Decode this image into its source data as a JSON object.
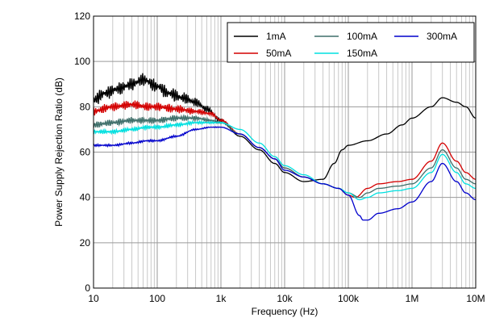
{
  "chart_data": {
    "type": "line",
    "title": "",
    "xlabel": "Frequency (Hz)",
    "ylabel": "Power Supply Rejection Ratio (dB)",
    "xscale": "log",
    "xlim": [
      10,
      10000000
    ],
    "ylim": [
      0,
      120
    ],
    "grid": "on",
    "legend": "top-right",
    "xticks": [
      {
        "value": 10,
        "label": "10"
      },
      {
        "value": 100,
        "label": "100"
      },
      {
        "value": 1000,
        "label": "1k"
      },
      {
        "value": 10000,
        "label": "10k"
      },
      {
        "value": 100000,
        "label": "100k"
      },
      {
        "value": 1000000,
        "label": "1M"
      },
      {
        "value": 10000000,
        "label": "10M"
      }
    ],
    "yticks": [
      {
        "value": 0,
        "label": "0"
      },
      {
        "value": 20,
        "label": "20"
      },
      {
        "value": 40,
        "label": "40"
      },
      {
        "value": 60,
        "label": "60"
      },
      {
        "value": 80,
        "label": "80"
      },
      {
        "value": 100,
        "label": "100"
      },
      {
        "value": 120,
        "label": "120"
      }
    ],
    "series": [
      {
        "name": "1mA",
        "color": "#000000",
        "noise": 3.0,
        "legend_row": 0,
        "legend_col": 0,
        "points": [
          [
            10,
            83
          ],
          [
            15,
            86
          ],
          [
            25,
            88
          ],
          [
            40,
            90
          ],
          [
            60,
            92
          ],
          [
            100,
            89
          ],
          [
            150,
            86
          ],
          [
            250,
            84
          ],
          [
            400,
            82
          ],
          [
            600,
            79
          ],
          [
            1000,
            74
          ],
          [
            2000,
            67
          ],
          [
            4000,
            61
          ],
          [
            7000,
            55
          ],
          [
            10000,
            51
          ],
          [
            20000,
            47
          ],
          [
            40000,
            48
          ],
          [
            60000,
            55
          ],
          [
            80000,
            61
          ],
          [
            100000,
            63
          ],
          [
            200000,
            65
          ],
          [
            400000,
            68
          ],
          [
            700000,
            72
          ],
          [
            1000000,
            75
          ],
          [
            2000000,
            80
          ],
          [
            3000000,
            84
          ],
          [
            5000000,
            82
          ],
          [
            7000000,
            80
          ],
          [
            10000000,
            75
          ]
        ]
      },
      {
        "name": "50mA",
        "color": "#d40000",
        "noise": 2.0,
        "legend_row": 1,
        "legend_col": 0,
        "points": [
          [
            10,
            78
          ],
          [
            20,
            80
          ],
          [
            40,
            81
          ],
          [
            70,
            80
          ],
          [
            100,
            80
          ],
          [
            200,
            79
          ],
          [
            400,
            78
          ],
          [
            700,
            77
          ],
          [
            1000,
            74
          ],
          [
            2000,
            68
          ],
          [
            4000,
            62
          ],
          [
            7000,
            57
          ],
          [
            10000,
            53
          ],
          [
            20000,
            49
          ],
          [
            40000,
            46
          ],
          [
            70000,
            44
          ],
          [
            100000,
            41
          ],
          [
            130000,
            40
          ],
          [
            200000,
            44
          ],
          [
            300000,
            46
          ],
          [
            600000,
            47
          ],
          [
            1000000,
            48
          ],
          [
            2000000,
            56
          ],
          [
            3000000,
            64
          ],
          [
            5000000,
            56
          ],
          [
            7000000,
            51
          ],
          [
            10000000,
            48
          ]
        ]
      },
      {
        "name": "100mA",
        "color": "#3f6f6a",
        "noise": 1.5,
        "legend_row": 0,
        "legend_col": 1,
        "points": [
          [
            10,
            72
          ],
          [
            20,
            73
          ],
          [
            40,
            74
          ],
          [
            70,
            74
          ],
          [
            100,
            74
          ],
          [
            200,
            75
          ],
          [
            400,
            75
          ],
          [
            700,
            74
          ],
          [
            1000,
            73
          ],
          [
            2000,
            68
          ],
          [
            4000,
            62
          ],
          [
            7000,
            57
          ],
          [
            10000,
            53
          ],
          [
            20000,
            49
          ],
          [
            40000,
            46
          ],
          [
            70000,
            44
          ],
          [
            100000,
            42
          ],
          [
            150000,
            40
          ],
          [
            200000,
            42
          ],
          [
            300000,
            44
          ],
          [
            600000,
            45
          ],
          [
            1000000,
            46
          ],
          [
            2000000,
            53
          ],
          [
            3000000,
            61
          ],
          [
            5000000,
            53
          ],
          [
            7000000,
            48
          ],
          [
            10000000,
            46
          ]
        ]
      },
      {
        "name": "150mA",
        "color": "#00e0e0",
        "noise": 1.0,
        "legend_row": 1,
        "legend_col": 1,
        "points": [
          [
            10,
            69
          ],
          [
            20,
            69
          ],
          [
            40,
            70
          ],
          [
            70,
            71
          ],
          [
            100,
            71
          ],
          [
            200,
            72
          ],
          [
            400,
            73
          ],
          [
            700,
            73
          ],
          [
            1000,
            73
          ],
          [
            2000,
            70
          ],
          [
            4000,
            64
          ],
          [
            7000,
            58
          ],
          [
            10000,
            54
          ],
          [
            20000,
            50
          ],
          [
            40000,
            46
          ],
          [
            70000,
            44
          ],
          [
            100000,
            42
          ],
          [
            150000,
            39
          ],
          [
            200000,
            40
          ],
          [
            300000,
            42
          ],
          [
            600000,
            43
          ],
          [
            1000000,
            44
          ],
          [
            2000000,
            51
          ],
          [
            3000000,
            59
          ],
          [
            5000000,
            51
          ],
          [
            7000000,
            46
          ],
          [
            10000000,
            44
          ]
        ]
      },
      {
        "name": "300mA",
        "color": "#0000cc",
        "noise": 0.5,
        "legend_row": 0,
        "legend_col": 2,
        "points": [
          [
            10,
            63
          ],
          [
            20,
            63
          ],
          [
            40,
            64
          ],
          [
            70,
            65
          ],
          [
            100,
            65
          ],
          [
            200,
            67
          ],
          [
            400,
            70
          ],
          [
            700,
            71
          ],
          [
            1000,
            71
          ],
          [
            2000,
            68
          ],
          [
            4000,
            62
          ],
          [
            7000,
            57
          ],
          [
            10000,
            52
          ],
          [
            20000,
            49
          ],
          [
            40000,
            46
          ],
          [
            70000,
            44
          ],
          [
            100000,
            41
          ],
          [
            150000,
            32
          ],
          [
            170000,
            30
          ],
          [
            200000,
            30
          ],
          [
            300000,
            33
          ],
          [
            600000,
            35
          ],
          [
            1000000,
            38
          ],
          [
            2000000,
            47
          ],
          [
            3000000,
            55
          ],
          [
            5000000,
            47
          ],
          [
            7000000,
            42
          ],
          [
            10000000,
            39
          ]
        ]
      }
    ]
  }
}
